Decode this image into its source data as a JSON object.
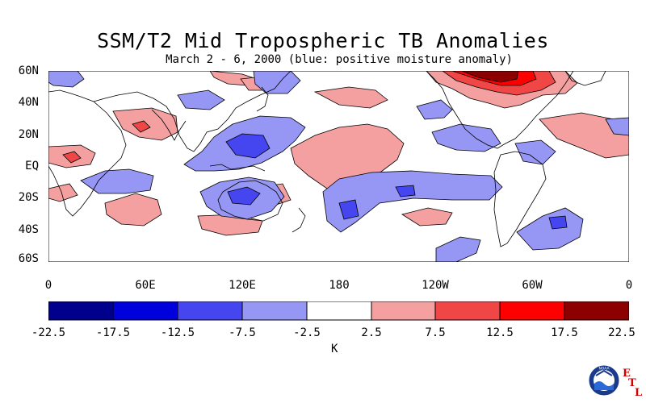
{
  "title": "SSM/T2 Mid Tropospheric TB Anomalies",
  "subtitle": "March 2 - 6, 2000 (blue: positive moisture anomaly)",
  "y_axis": {
    "ticks": [
      "60N",
      "40N",
      "20N",
      "EQ",
      "20S",
      "40S",
      "60S"
    ]
  },
  "x_axis": {
    "ticks": [
      "0",
      "60E",
      "120E",
      "180",
      "120W",
      "60W",
      "0"
    ]
  },
  "colorbar": {
    "unit": "K",
    "tick_labels": [
      "-22.5",
      "-17.5",
      "-12.5",
      "-7.5",
      "-2.5",
      "2.5",
      "7.5",
      "12.5",
      "17.5",
      "22.5"
    ],
    "colors": [
      "#00008c",
      "#0000dc",
      "#4646f0",
      "#9696f5",
      "#ffffff",
      "#f5a0a0",
      "#f04646",
      "#ff0000",
      "#8c0000"
    ]
  },
  "logo": {
    "name": "noaa-logo",
    "text": "NOAA",
    "lab_letters": [
      "E",
      "T",
      "L"
    ]
  },
  "chart_data": {
    "type": "heatmap",
    "title": "SSM/T2 Mid Tropospheric TB Anomalies",
    "subtitle": "March 2 - 6, 2000 (blue: positive moisture anomaly)",
    "x_range_deg_east": [
      0,
      360
    ],
    "y_range_deg_lat": [
      -60,
      60
    ],
    "levels_K": [
      -22.5,
      -17.5,
      -12.5,
      -7.5,
      -2.5,
      2.5,
      7.5,
      12.5,
      17.5,
      22.5
    ],
    "regions": [
      {
        "level": 5,
        "lon": 235,
        "lat": 52
      },
      {
        "level": 10,
        "lon": 250,
        "lat": 53
      },
      {
        "level": 15,
        "lon": 262,
        "lat": 56
      },
      {
        "level": 20,
        "lon": 265,
        "lat": 57
      },
      {
        "level": 5,
        "lon": 100,
        "lat": 50
      },
      {
        "level": 5,
        "lon": 152,
        "lat": 54
      },
      {
        "level": 5,
        "lon": 56,
        "lat": 23
      },
      {
        "level": 10,
        "lon": 68,
        "lat": 23
      },
      {
        "level": 5,
        "lon": 180,
        "lat": 10
      },
      {
        "level": 5,
        "lon": 330,
        "lat": 18
      },
      {
        "level": 5,
        "lon": 10,
        "lat": 5
      },
      {
        "level": 10,
        "lon": 14,
        "lat": 3
      },
      {
        "level": 5,
        "lon": 72,
        "lat": -28
      },
      {
        "level": 5,
        "lon": 260,
        "lat": -33
      },
      {
        "level": -5,
        "lon": 130,
        "lat": 18
      },
      {
        "level": -10,
        "lon": 136,
        "lat": 12
      },
      {
        "level": -5,
        "lon": 135,
        "lat": -22
      },
      {
        "level": -10,
        "lon": 130,
        "lat": -23
      },
      {
        "level": -5,
        "lon": 215,
        "lat": -15
      },
      {
        "level": -5,
        "lon": 85,
        "lat": -10
      },
      {
        "level": -5,
        "lon": 290,
        "lat": 8
      },
      {
        "level": -5,
        "lon": 325,
        "lat": -35
      },
      {
        "level": -5,
        "lon": 248,
        "lat": 44
      },
      {
        "level": -5,
        "lon": 255,
        "lat": -58
      }
    ]
  }
}
